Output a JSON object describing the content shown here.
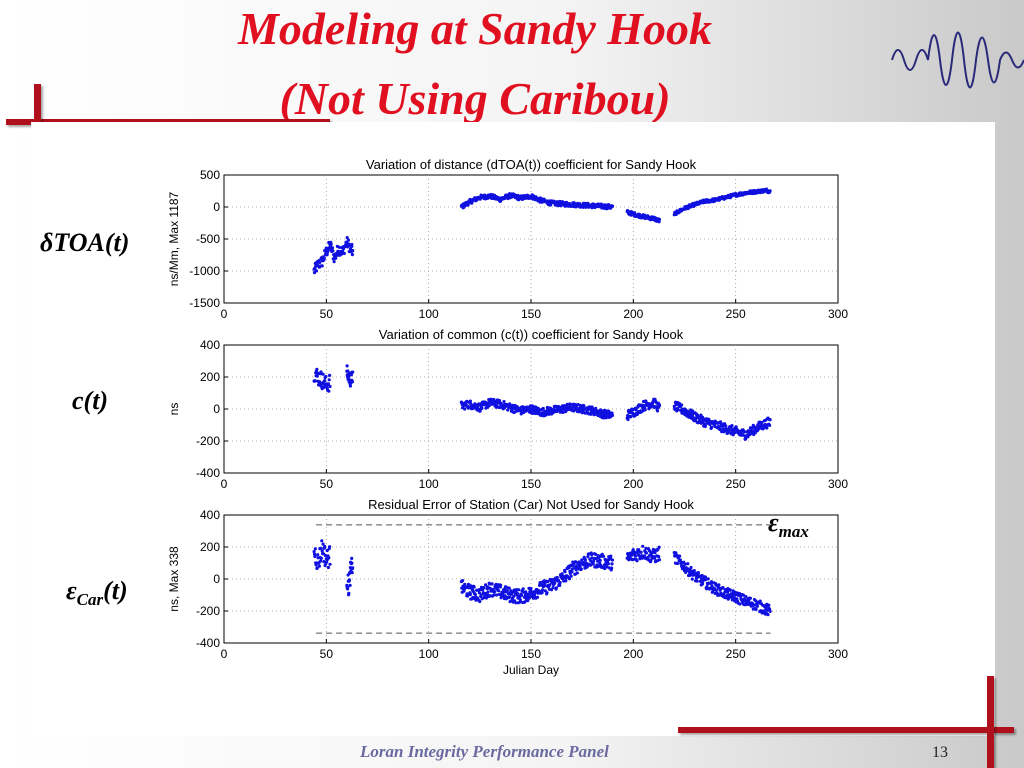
{
  "slide": {
    "title_line1": "Modeling at Sandy Hook",
    "title_line2": "(Not Using Caribou)",
    "footer": "Loran Integrity Performance Panel",
    "page_number": "13",
    "label_toa_delta": "δ",
    "label_toa_rest": "TOA(t)",
    "label_ct": "c(t)",
    "label_ecar_eps": "ε",
    "label_ecar_sub": "Car",
    "label_ecar_rest": "(t)",
    "label_emax_eps": "ε",
    "label_emax_sub": "max",
    "accent_color": "#e01020"
  },
  "chart_data": [
    {
      "type": "scatter",
      "title": "Variation of distance (dTOA(t)) coefficient for Sandy Hook",
      "xlabel": "",
      "ylabel": "ns/Mm, Max 1187",
      "xlim": [
        0,
        300
      ],
      "ylim": [
        -1500,
        500
      ],
      "xticks": [
        0,
        50,
        100,
        150,
        200,
        250,
        300
      ],
      "yticks": [
        500,
        0,
        -500,
        -1000,
        -1500
      ],
      "grid": true,
      "color": "#1010e0",
      "series": [
        {
          "x": [
            44,
            46,
            48,
            50,
            52,
            54,
            56,
            58,
            60,
            62,
            63
          ],
          "y": [
            -1000,
            -900,
            -850,
            -700,
            -600,
            -800,
            -650,
            -700,
            -550,
            -650,
            -700
          ],
          "spread": 180
        },
        {
          "x": [
            116,
            120,
            125,
            130,
            135,
            140,
            145,
            150,
            155,
            160,
            165,
            170,
            175,
            180,
            185,
            190
          ],
          "y": [
            0,
            80,
            150,
            170,
            120,
            180,
            140,
            170,
            100,
            60,
            50,
            40,
            30,
            20,
            10,
            0
          ],
          "spread": 70
        },
        {
          "x": [
            197,
            200,
            205,
            210,
            213
          ],
          "y": [
            -80,
            -110,
            -150,
            -180,
            -220
          ],
          "spread": 60
        },
        {
          "x": [
            220,
            225,
            230,
            235,
            240,
            245,
            250,
            255,
            260,
            265,
            267
          ],
          "y": [
            -110,
            -20,
            40,
            90,
            110,
            150,
            190,
            220,
            240,
            260,
            240
          ],
          "spread": 50
        }
      ]
    },
    {
      "type": "scatter",
      "title": "Variation of common (c(t)) coefficient for Sandy Hook",
      "xlabel": "",
      "ylabel": "ns",
      "xlim": [
        0,
        300
      ],
      "ylim": [
        -400,
        400
      ],
      "xticks": [
        0,
        50,
        100,
        150,
        200,
        250,
        300
      ],
      "yticks": [
        400,
        200,
        0,
        -200,
        -400
      ],
      "grid": true,
      "color": "#1010e0",
      "series": [
        {
          "x": [
            44,
            46,
            48,
            50,
            52
          ],
          "y": [
            230,
            200,
            180,
            150,
            170
          ],
          "spread": 110
        },
        {
          "x": [
            60,
            61,
            62,
            63
          ],
          "y": [
            230,
            200,
            180,
            210
          ],
          "spread": 90
        },
        {
          "x": [
            116,
            120,
            125,
            130,
            135,
            140,
            145,
            150,
            155,
            160,
            165,
            170,
            175,
            180,
            185,
            190
          ],
          "y": [
            20,
            30,
            10,
            40,
            30,
            10,
            -10,
            0,
            -20,
            -10,
            0,
            10,
            0,
            -10,
            -30,
            -40
          ],
          "spread": 50
        },
        {
          "x": [
            197,
            200,
            205,
            210,
            213
          ],
          "y": [
            -40,
            -20,
            20,
            40,
            0
          ],
          "spread": 60
        },
        {
          "x": [
            220,
            225,
            230,
            235,
            240,
            245,
            250,
            255,
            260,
            265,
            267
          ],
          "y": [
            20,
            -10,
            -50,
            -80,
            -100,
            -120,
            -140,
            -160,
            -120,
            -90,
            -80
          ],
          "spread": 60
        }
      ]
    },
    {
      "type": "scatter",
      "title": "Residual Error of Station (Car) Not Used for Sandy Hook",
      "xlabel": "Julian Day",
      "ylabel": "ns, Max 338",
      "xlim": [
        0,
        300
      ],
      "ylim": [
        -400,
        400
      ],
      "xticks": [
        0,
        50,
        100,
        150,
        200,
        250,
        300
      ],
      "yticks": [
        400,
        200,
        0,
        -200,
        -400
      ],
      "grid": true,
      "color": "#1010e0",
      "emax": 338,
      "emax_range": [
        45,
        267
      ],
      "series": [
        {
          "x": [
            44,
            46,
            48,
            50,
            52
          ],
          "y": [
            180,
            100,
            200,
            120,
            150
          ],
          "spread": 130
        },
        {
          "x": [
            60,
            61,
            62,
            63
          ],
          "y": [
            0,
            -50,
            60,
            100
          ],
          "spread": 120
        },
        {
          "x": [
            116,
            120,
            125,
            130,
            135,
            140,
            145,
            150,
            155,
            160,
            165,
            170,
            175,
            180,
            185,
            190
          ],
          "y": [
            -50,
            -80,
            -100,
            -60,
            -80,
            -100,
            -110,
            -90,
            -60,
            -40,
            0,
            60,
            100,
            120,
            110,
            100
          ],
          "spread": 90
        },
        {
          "x": [
            197,
            200,
            205,
            210,
            213
          ],
          "y": [
            120,
            150,
            170,
            140,
            160
          ],
          "spread": 90
        },
        {
          "x": [
            220,
            225,
            230,
            235,
            240,
            245,
            250,
            255,
            260,
            265,
            267
          ],
          "y": [
            140,
            80,
            20,
            -20,
            -60,
            -90,
            -110,
            -140,
            -160,
            -190,
            -200
          ],
          "spread": 70
        }
      ]
    }
  ]
}
